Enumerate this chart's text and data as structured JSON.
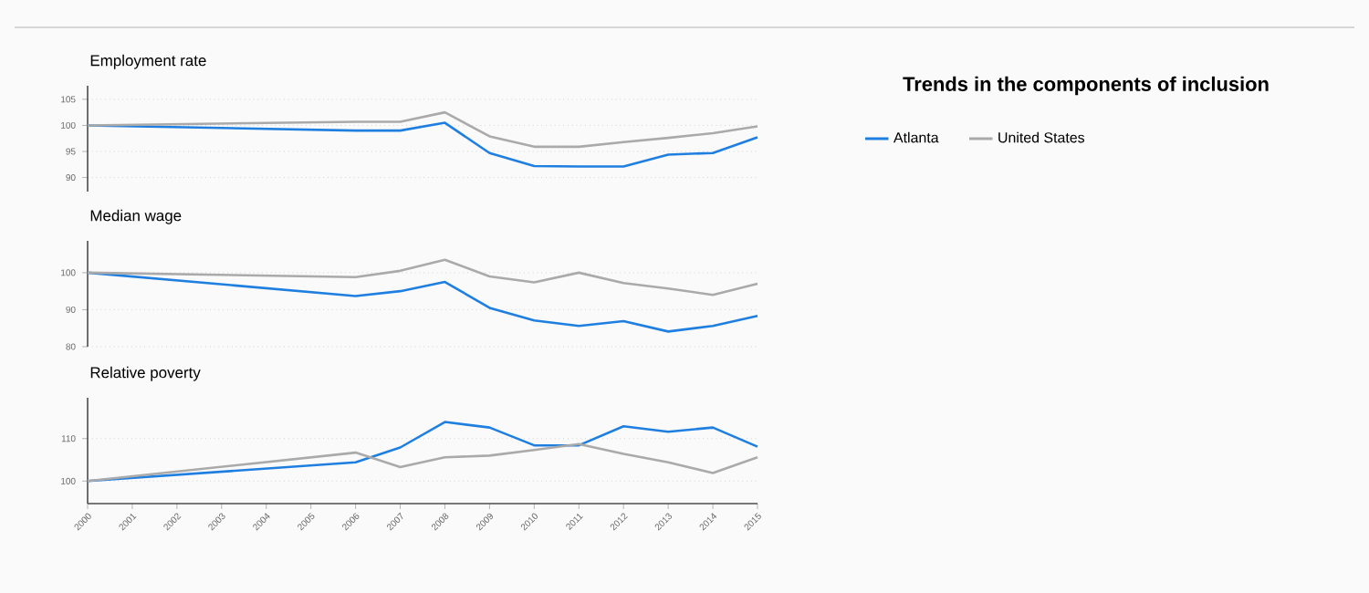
{
  "chart_data": [
    {
      "type": "line",
      "title": "Employment rate",
      "x": [
        2000,
        2006,
        2007,
        2008,
        2009,
        2010,
        2011,
        2012,
        2013,
        2014,
        2015
      ],
      "xlim": [
        2000,
        2015
      ],
      "ylim": [
        87.3,
        107.6
      ],
      "yticks": [
        90,
        95,
        100,
        105
      ],
      "grid": "y",
      "tick_labels": "y",
      "legend": "right",
      "series": [
        {
          "name": "Atlanta",
          "color": "#1f7fe0",
          "values": [
            100,
            99.0,
            99.0,
            100.5,
            94.7,
            92.2,
            92.1,
            92.1,
            94.4,
            94.7,
            97.7
          ]
        },
        {
          "name": "United States",
          "color": "#aaaaaa",
          "values": [
            100,
            100.7,
            100.7,
            102.5,
            97.9,
            95.9,
            95.9,
            96.8,
            97.6,
            98.5,
            99.8
          ]
        }
      ]
    },
    {
      "type": "line",
      "title": "Median wage",
      "x": [
        2000,
        2006,
        2007,
        2008,
        2009,
        2010,
        2011,
        2012,
        2013,
        2014,
        2015
      ],
      "xlim": [
        2000,
        2015
      ],
      "ylim": [
        80,
        108.6
      ],
      "yticks": [
        80,
        90,
        100
      ],
      "grid": "y",
      "tick_labels": "y",
      "series": [
        {
          "color": "#1f7fe0",
          "values": [
            100,
            93.7,
            95.0,
            97.5,
            90.5,
            87.1,
            85.6,
            86.9,
            84.1,
            85.6,
            88.3
          ]
        },
        {
          "color": "#aaaaaa",
          "values": [
            100,
            98.8,
            100.5,
            103.5,
            99.0,
            97.4,
            100,
            97.2,
            95.7,
            94.0,
            97.0
          ]
        }
      ]
    },
    {
      "type": "line",
      "title": "Relative poverty",
      "x": [
        2000,
        2006,
        2007,
        2008,
        2009,
        2010,
        2011,
        2012,
        2013,
        2014,
        2015
      ],
      "xlim": [
        2000,
        2015
      ],
      "xticks": [
        2000,
        2001,
        2002,
        2003,
        2004,
        2005,
        2006,
        2007,
        2008,
        2009,
        2010,
        2011,
        2012,
        2013,
        2014,
        2015
      ],
      "ylim": [
        94.7,
        119.6
      ],
      "yticks": [
        100,
        110
      ],
      "grid": "y",
      "series": [
        {
          "color": "#1f7fe0",
          "values": [
            100,
            104.4,
            107.9,
            113.9,
            112.6,
            108.4,
            108.4,
            112.9,
            111.6,
            112.6,
            108.1
          ]
        },
        {
          "color": "#aaaaaa",
          "values": [
            100,
            106.7,
            103.3,
            105.6,
            106.0,
            107.3,
            108.7,
            106.4,
            104.4,
            101.9,
            105.6
          ]
        }
      ]
    },
    {
      "type": "other",
      "title": "Trends in the components of inclusion"
    }
  ]
}
